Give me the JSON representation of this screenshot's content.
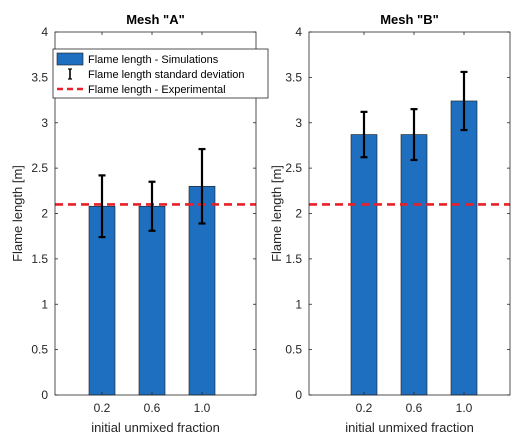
{
  "chart_data": [
    {
      "type": "bar",
      "title": "Mesh \"A\"",
      "xlabel": "initial unmixed fraction",
      "ylabel": "Flame length [m]",
      "categories": [
        "0.2",
        "0.6",
        "1.0"
      ],
      "values": [
        2.08,
        2.08,
        2.3
      ],
      "error": [
        0.34,
        0.27,
        0.41
      ],
      "reference": {
        "value": 2.1,
        "name": "Flame length - Experimental",
        "color": "#e8202a"
      },
      "ylim": [
        0,
        4
      ],
      "yticks": [
        "0",
        "0.5",
        "1",
        "1.5",
        "2",
        "2.5",
        "3",
        "3.5",
        "4"
      ],
      "bar_color": "#1f6fc0",
      "legend": {
        "placement": "top",
        "entries": [
          {
            "kind": "bar",
            "label": "Flame length - Simulations"
          },
          {
            "kind": "errorbar",
            "label": "Flame length standard deviation"
          },
          {
            "kind": "dashed-line",
            "label": "Flame length - Experimental"
          }
        ]
      }
    },
    {
      "type": "bar",
      "title": "Mesh \"B\"",
      "xlabel": "initial unmixed fraction",
      "ylabel": "Flame length [m]",
      "categories": [
        "0.2",
        "0.6",
        "1.0"
      ],
      "values": [
        2.87,
        2.87,
        3.24
      ],
      "error": [
        0.25,
        0.28,
        0.32
      ],
      "reference": {
        "value": 2.1,
        "color": "#e8202a"
      },
      "ylim": [
        0,
        4
      ],
      "yticks": [
        "0",
        "0.5",
        "1",
        "1.5",
        "2",
        "2.5",
        "3",
        "3.5",
        "4"
      ],
      "bar_color": "#1f6fc0"
    }
  ]
}
